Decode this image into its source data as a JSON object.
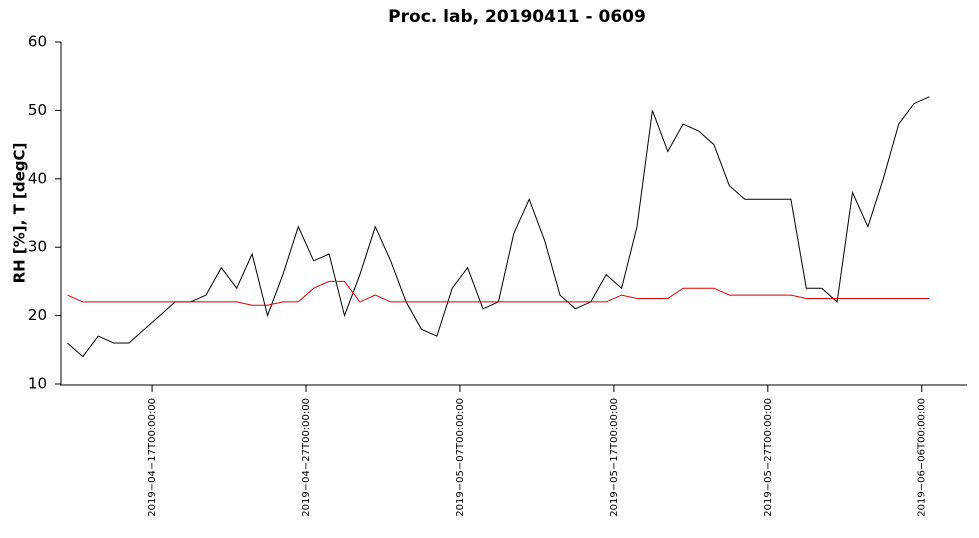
{
  "chart_data": {
    "type": "line",
    "title": "Proc. lab, 20190411 - 0609",
    "y_label": "RH [%], T [degC]",
    "x": [
      "2019-04-11T12:00:00",
      "2019-04-12T12:00:00",
      "2019-04-13T12:00:00",
      "2019-04-14T12:00:00",
      "2019-04-15T12:00:00",
      "2019-04-16T12:00:00",
      "2019-04-17T12:00:00",
      "2019-04-18T12:00:00",
      "2019-04-19T12:00:00",
      "2019-04-20T12:00:00",
      "2019-04-21T12:00:00",
      "2019-04-22T12:00:00",
      "2019-04-23T12:00:00",
      "2019-04-24T12:00:00",
      "2019-04-25T12:00:00",
      "2019-04-26T12:00:00",
      "2019-04-27T12:00:00",
      "2019-04-28T12:00:00",
      "2019-04-29T12:00:00",
      "2019-04-30T12:00:00",
      "2019-05-01T12:00:00",
      "2019-05-02T12:00:00",
      "2019-05-03T12:00:00",
      "2019-05-04T12:00:00",
      "2019-05-05T12:00:00",
      "2019-05-06T12:00:00",
      "2019-05-07T12:00:00",
      "2019-05-08T12:00:00",
      "2019-05-09T12:00:00",
      "2019-05-10T12:00:00",
      "2019-05-11T12:00:00",
      "2019-05-12T12:00:00",
      "2019-05-13T12:00:00",
      "2019-05-14T12:00:00",
      "2019-05-15T12:00:00",
      "2019-05-16T12:00:00",
      "2019-05-17T12:00:00",
      "2019-05-18T12:00:00",
      "2019-05-19T12:00:00",
      "2019-05-20T12:00:00",
      "2019-05-21T12:00:00",
      "2019-05-22T12:00:00",
      "2019-05-23T12:00:00",
      "2019-05-24T12:00:00",
      "2019-05-25T12:00:00",
      "2019-05-26T12:00:00",
      "2019-05-27T12:00:00",
      "2019-05-28T12:00:00",
      "2019-05-29T12:00:00",
      "2019-05-30T12:00:00",
      "2019-05-31T12:00:00",
      "2019-06-01T12:00:00",
      "2019-06-02T12:00:00",
      "2019-06-03T12:00:00",
      "2019-06-04T12:00:00",
      "2019-06-05T12:00:00",
      "2019-06-06T12:00:00"
    ],
    "series": [
      {
        "name": "RH",
        "color": "#000000",
        "values": [
          16,
          14,
          17,
          16,
          16,
          18,
          20,
          22,
          22,
          23,
          27,
          24,
          29,
          20,
          26,
          33,
          28,
          29,
          20,
          26,
          33,
          28,
          22,
          18,
          17,
          24,
          27,
          21,
          22,
          32,
          37,
          31,
          23,
          21,
          22,
          26,
          24,
          33,
          50,
          44,
          48,
          47,
          45,
          39,
          37,
          37,
          37,
          37,
          24,
          24,
          22,
          38,
          33,
          40,
          48,
          51,
          52
        ]
      },
      {
        "name": "T",
        "color": "#e00000",
        "values": [
          23,
          22,
          22,
          22,
          22,
          22,
          22,
          22,
          22,
          22,
          22,
          22,
          21.5,
          21.5,
          22,
          22,
          24,
          25,
          25,
          22,
          23,
          22,
          22,
          22,
          22,
          22,
          22,
          22,
          22,
          22,
          22,
          22,
          22,
          22,
          22,
          22,
          23,
          22.5,
          22.5,
          22.5,
          24,
          24,
          24,
          23,
          23,
          23,
          23,
          23,
          22.5,
          22.5,
          22.5,
          22.5,
          22.5,
          22.5,
          22.5,
          22.5,
          22.5
        ]
      }
    ],
    "xlim": [
      "2019-04-11T02:00:00",
      "2019-06-08T21:00:00"
    ],
    "xticks": [
      {
        "value": "2019-04-17T00:00:00",
        "label": "2019−04−17T00:00:00"
      },
      {
        "value": "2019-04-27T00:00:00",
        "label": "2019−04−27T00:00:00"
      },
      {
        "value": "2019-05-07T00:00:00",
        "label": "2019−05−07T00:00:00"
      },
      {
        "value": "2019-05-17T00:00:00",
        "label": "2019−05−17T00:00:00"
      },
      {
        "value": "2019-05-27T00:00:00",
        "label": "2019−05−27T00:00:00"
      },
      {
        "value": "2019-06-06T00:00:00",
        "label": "2019−06−06T00:00:00"
      }
    ],
    "ylim": [
      10,
      60
    ],
    "yticks": [
      10,
      20,
      30,
      40,
      50,
      60
    ],
    "grid": false
  }
}
